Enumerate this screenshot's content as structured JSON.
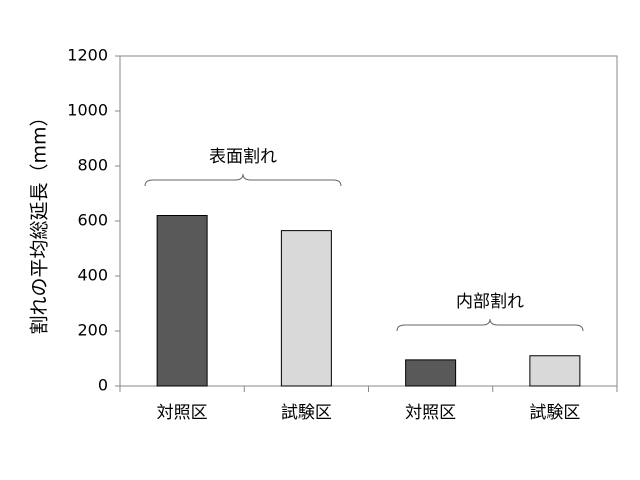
{
  "chart_data": {
    "type": "bar",
    "y_label": "割れの平均総延長（mm）",
    "categories": [
      "対照区",
      "試験区",
      "対照区",
      "試験区"
    ],
    "values": [
      620,
      565,
      95,
      110
    ],
    "colors": [
      "#595959",
      "#d9d9d9",
      "#595959",
      "#d9d9d9"
    ],
    "ylim": [
      0,
      1200
    ],
    "yticks": [
      0,
      200,
      400,
      600,
      800,
      1000,
      1200
    ],
    "annotations": [
      "表面割れ",
      "内部割れ"
    ]
  }
}
